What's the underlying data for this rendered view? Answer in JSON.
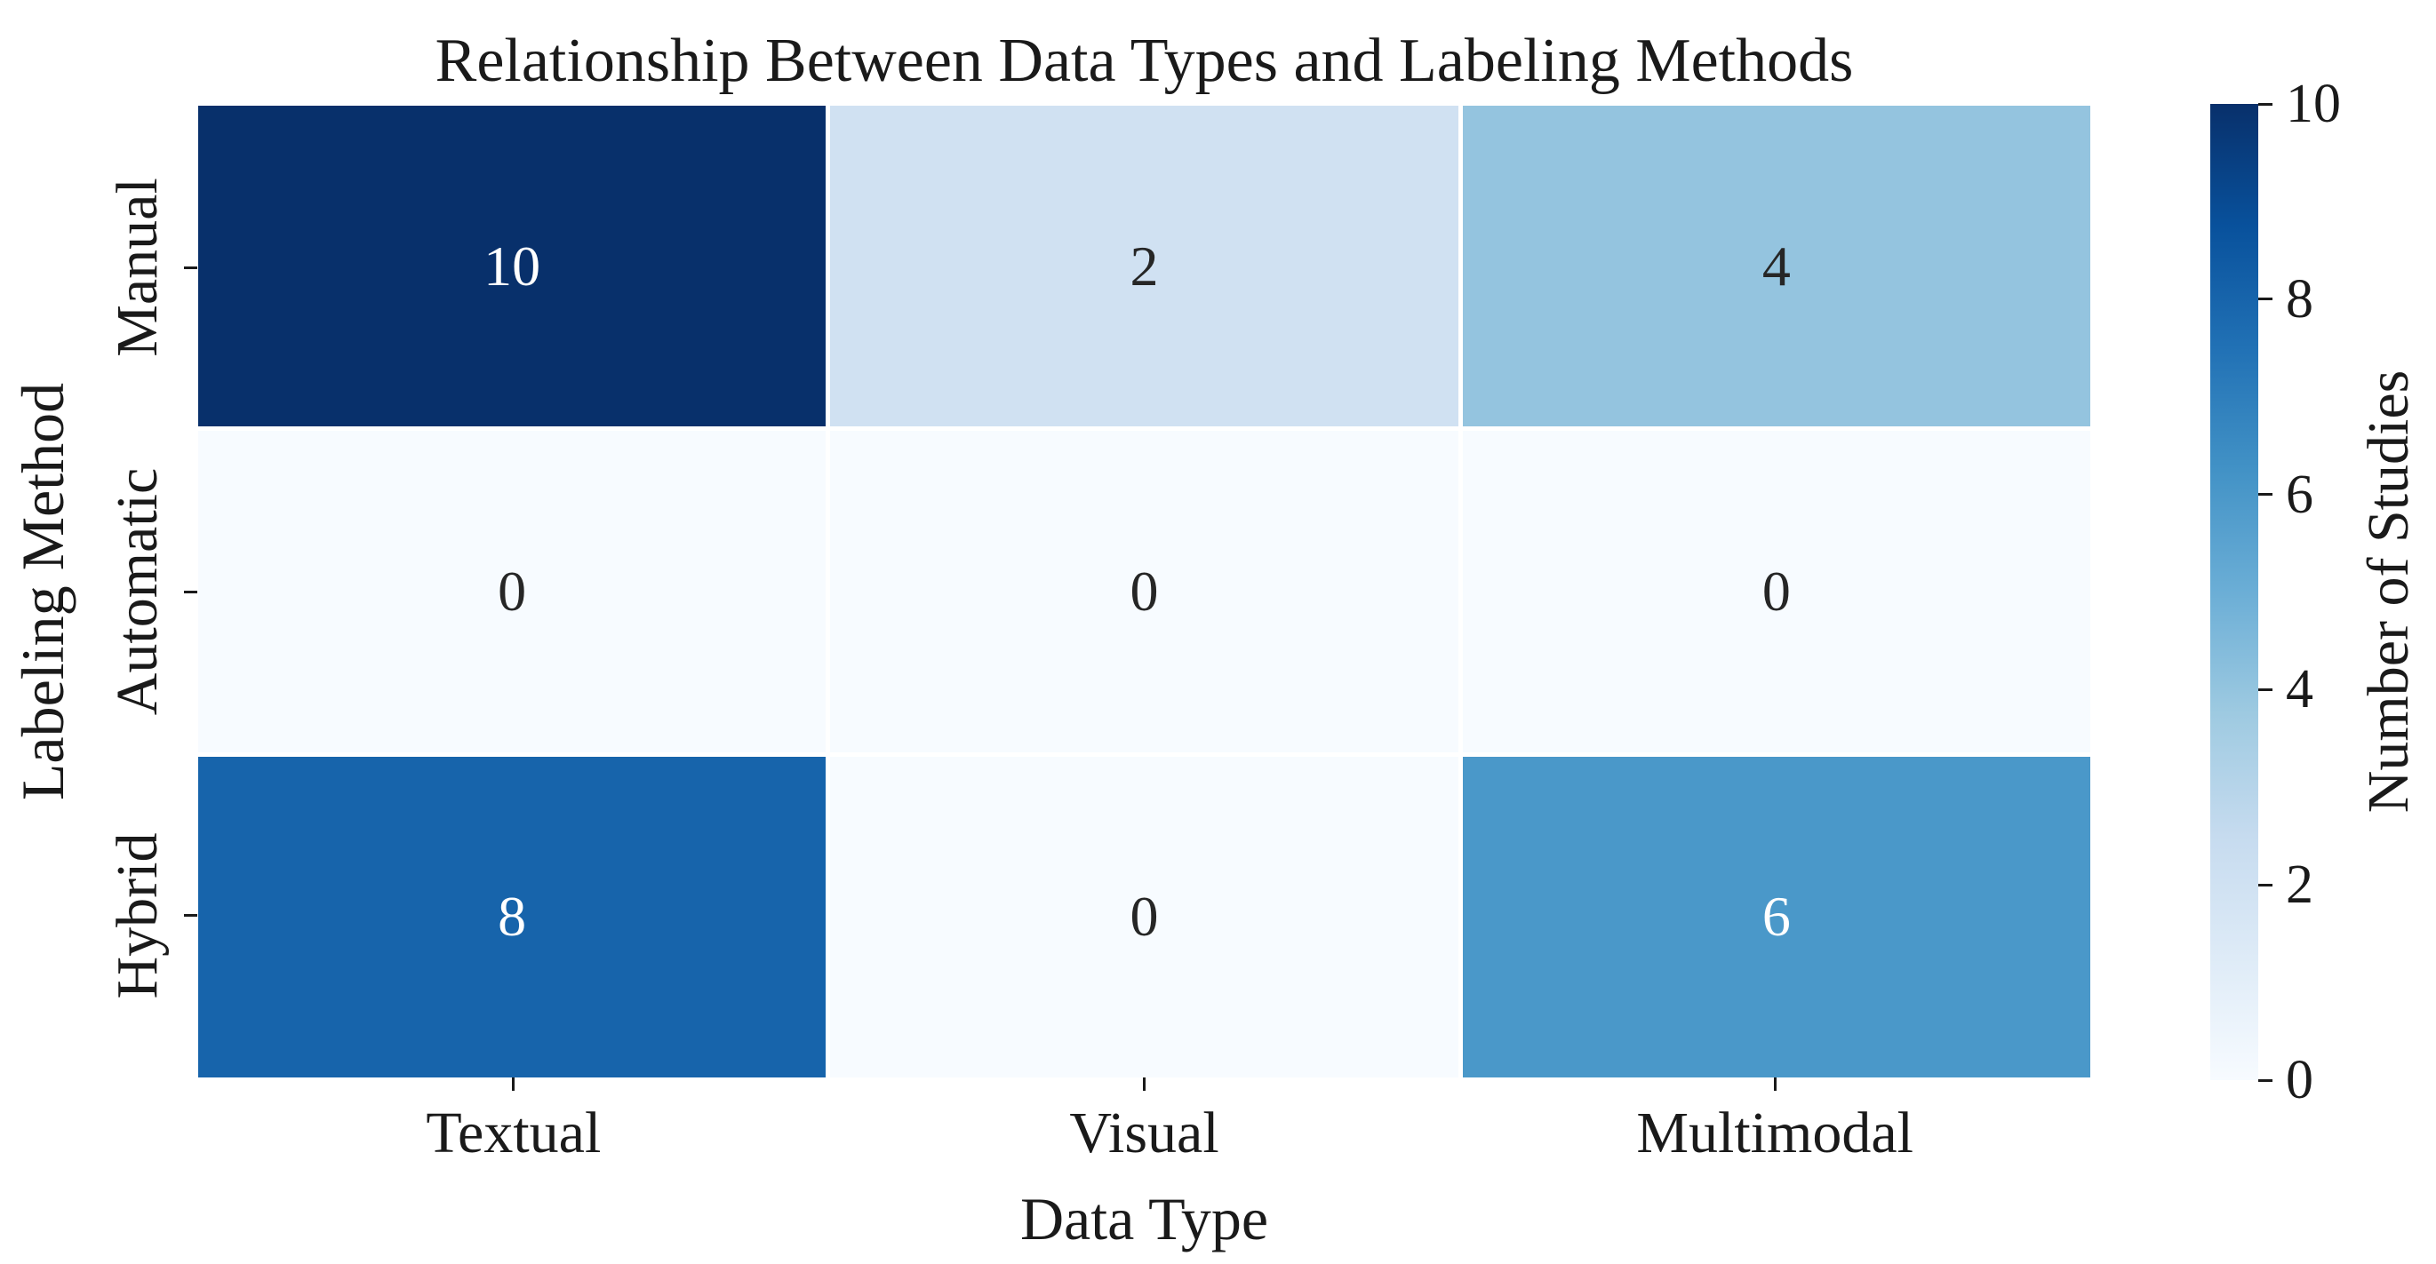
{
  "chart_data": {
    "type": "heatmap",
    "title": "Relationship Between Data Types and Labeling Methods",
    "xlabel": "Data Type",
    "ylabel": "Labeling Method",
    "colorbar_label": "Number of Studies",
    "x_categories": [
      "Textual",
      "Visual",
      "Multimodal"
    ],
    "y_categories": [
      "Manual",
      "Automatic",
      "Hybrid"
    ],
    "values": [
      [
        10,
        2,
        4
      ],
      [
        0,
        0,
        0
      ],
      [
        8,
        0,
        6
      ]
    ],
    "vmin": 0,
    "vmax": 10,
    "colorbar_ticks": [
      0,
      2,
      4,
      6,
      8,
      10
    ],
    "legend_position": "right-colorbar",
    "grid": false,
    "cell_colors": [
      [
        "#08306b",
        "#d0e1f2",
        "#94c4df"
      ],
      [
        "#f7fbff",
        "#f7fbff",
        "#f7fbff"
      ],
      [
        "#1764ab",
        "#f7fbff",
        "#4a98c9"
      ]
    ],
    "annot_text_colors": [
      [
        "#ffffff",
        "#262626",
        "#262626"
      ],
      [
        "#262626",
        "#262626",
        "#262626"
      ],
      [
        "#ffffff",
        "#262626",
        "#ffffff"
      ]
    ],
    "colormap": {
      "name": "Blues",
      "stops_bottom_to_top": [
        "#f7fbff",
        "#deebf7",
        "#c6dbef",
        "#9ecae1",
        "#6baed6",
        "#4292c6",
        "#2171b5",
        "#08519c",
        "#08306b"
      ]
    },
    "tick_color": "#1a1a1a",
    "background_color": "#ffffff"
  }
}
